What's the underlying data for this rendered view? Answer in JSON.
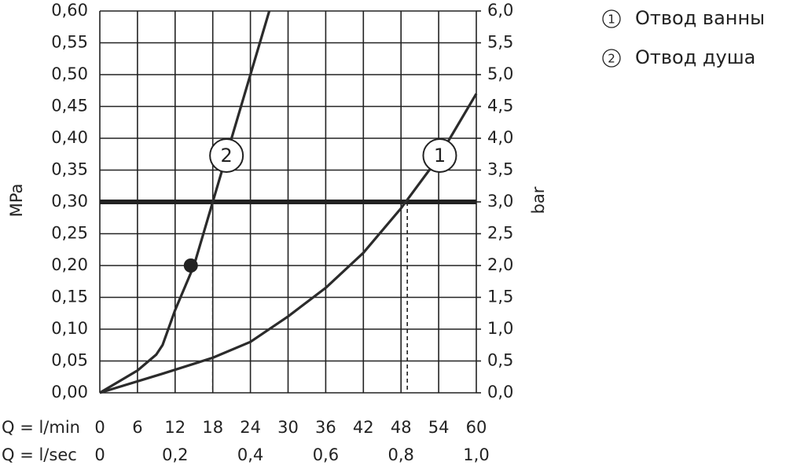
{
  "chart_data": {
    "type": "line",
    "ylabel": "MPa",
    "y2label": "bar",
    "xlabel": "Q = l/min",
    "x2label": "Q = l/sec",
    "xlim": [
      0,
      60
    ],
    "xticks": [
      0,
      6,
      12,
      18,
      24,
      30,
      36,
      42,
      48,
      54,
      60
    ],
    "x2lim": [
      0,
      1
    ],
    "x2ticks": [
      0,
      {
        "value": 0.2,
        "label": "0,2"
      },
      {
        "value": 0.4,
        "label": "0,4"
      },
      {
        "value": 0.6,
        "label": "0,6"
      },
      {
        "value": 0.8,
        "label": "0,8"
      },
      {
        "value": 1.0,
        "label": "1,0"
      }
    ],
    "ylim": [
      0,
      0.6
    ],
    "yticks": [
      {
        "value": 0,
        "label": "0,00"
      },
      {
        "value": 0.05,
        "label": "0,05"
      },
      {
        "value": 0.1,
        "label": "0,10"
      },
      {
        "value": 0.15,
        "label": "0,15"
      },
      {
        "value": 0.2,
        "label": "0,20"
      },
      {
        "value": 0.25,
        "label": "0,25"
      },
      {
        "value": 0.3,
        "label": "0,30"
      },
      {
        "value": 0.35,
        "label": "0,35"
      },
      {
        "value": 0.4,
        "label": "0,40"
      },
      {
        "value": 0.45,
        "label": "0,45"
      },
      {
        "value": 0.5,
        "label": "0,50"
      },
      {
        "value": 0.55,
        "label": "0,55"
      },
      {
        "value": 0.6,
        "label": "0,60"
      }
    ],
    "y2lim": [
      0,
      6
    ],
    "y2ticks": [
      {
        "value": 0,
        "label": "0,0"
      },
      {
        "value": 0.5,
        "label": "0,5"
      },
      {
        "value": 1,
        "label": "1,0"
      },
      {
        "value": 1.5,
        "label": "1,5"
      },
      {
        "value": 2,
        "label": "2,0"
      },
      {
        "value": 2.5,
        "label": "2,5"
      },
      {
        "value": 3,
        "label": "3,0"
      },
      {
        "value": 3.5,
        "label": "3,5"
      },
      {
        "value": 4,
        "label": "4,0"
      },
      {
        "value": 4.5,
        "label": "4,5"
      },
      {
        "value": 5,
        "label": "5,0"
      },
      {
        "value": 5.5,
        "label": "5,5"
      },
      {
        "value": 6,
        "label": "6,0"
      }
    ],
    "grid": true,
    "reference_y": 0.3,
    "reference_x": [
      18,
      49
    ],
    "point": {
      "x": 14.5,
      "y": 0.2
    },
    "series": [
      {
        "name": "Отвод ванны",
        "label": "1",
        "color": "#2b2b2b",
        "x": [
          0,
          10,
          18,
          24,
          30,
          36,
          42,
          48,
          54,
          60
        ],
        "values": [
          0,
          0.03,
          0.055,
          0.08,
          0.12,
          0.165,
          0.22,
          0.29,
          0.37,
          0.47
        ]
      },
      {
        "name": "Отвод душа",
        "label": "2",
        "color": "#2b2b2b",
        "x": [
          0,
          6,
          9,
          10,
          12,
          15,
          18,
          21,
          24,
          27
        ],
        "values": [
          0,
          0.035,
          0.06,
          0.075,
          0.13,
          0.2,
          0.3,
          0.4,
          0.5,
          0.6
        ]
      }
    ]
  }
}
